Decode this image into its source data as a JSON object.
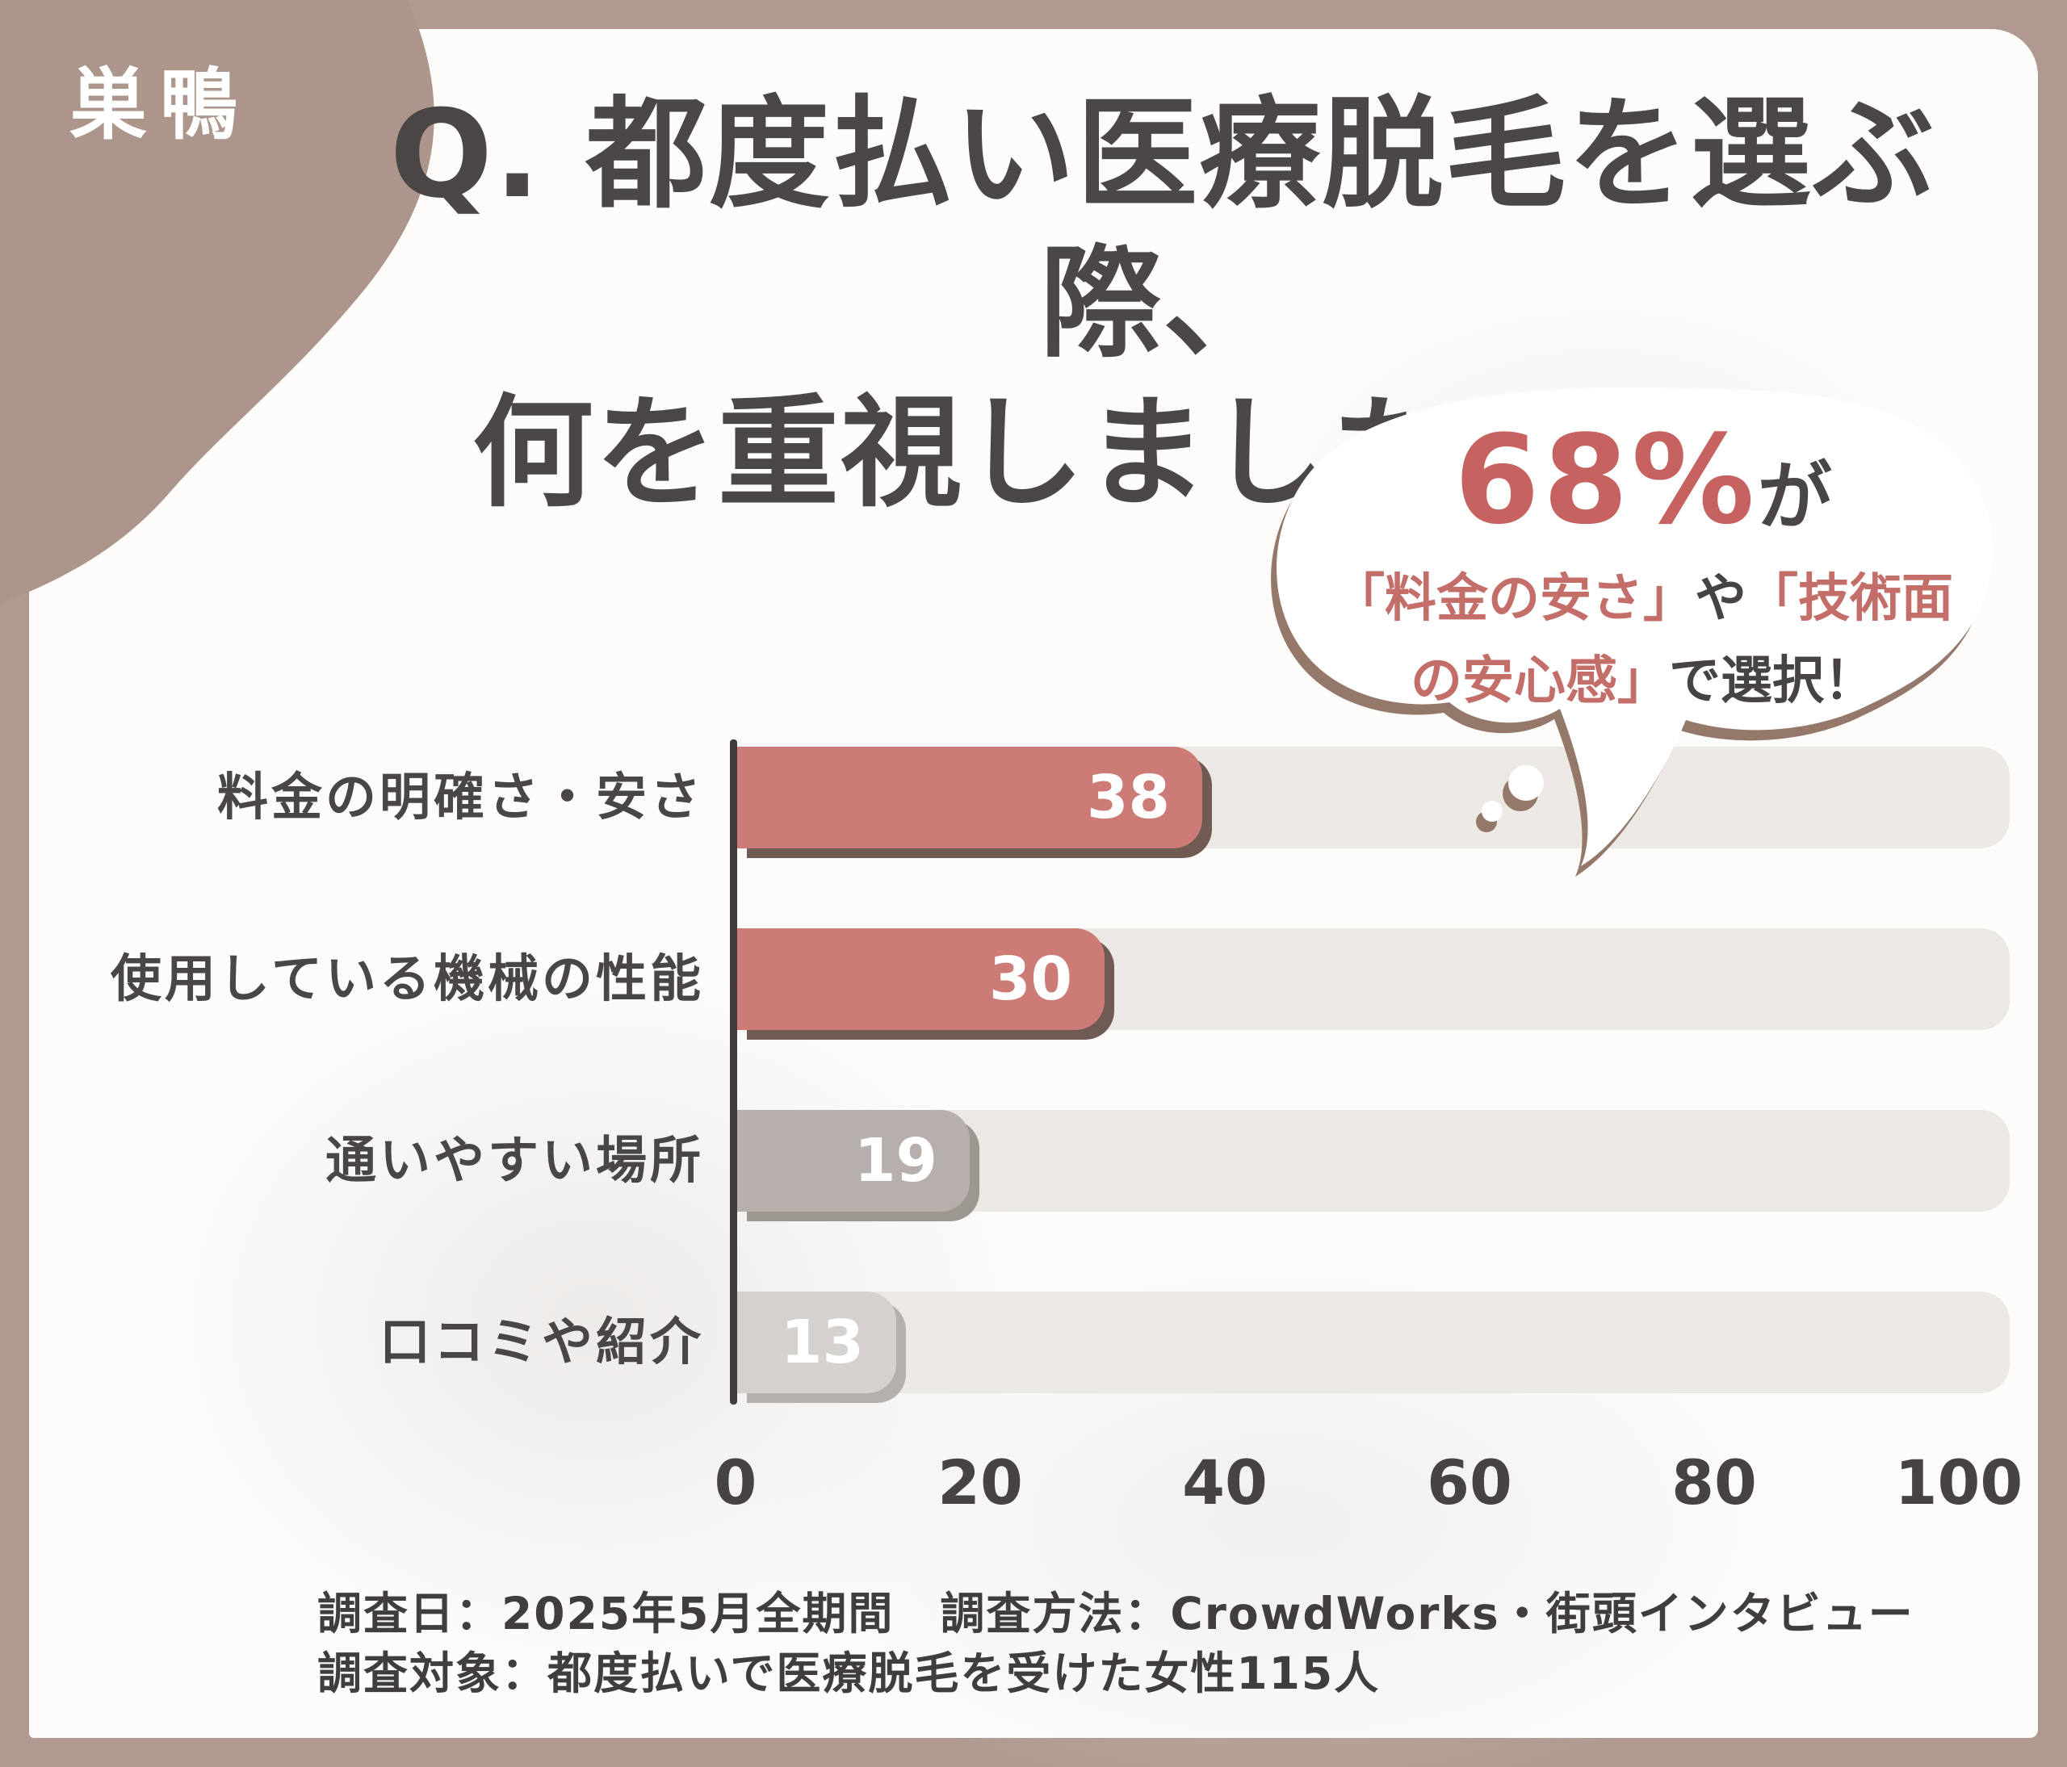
{
  "brand": {
    "logo": "巣鴨"
  },
  "title": {
    "line1": "Q. 都度払い医療脱毛を選ぶ際、",
    "line2": "何を重視しましたか？"
  },
  "callout": {
    "headline_value": "68%",
    "headline_suffix": "が",
    "line2_segments": [
      {
        "text": "「料金の安さ」",
        "tone": "red"
      },
      {
        "text": "や",
        "tone": "dark"
      },
      {
        "text": "「技術面",
        "tone": "red"
      }
    ],
    "line3_segments": [
      {
        "text": "の安心感」",
        "tone": "red"
      },
      {
        "text": "で選択！",
        "tone": "dark"
      }
    ]
  },
  "chart_data": {
    "type": "bar",
    "orientation": "horizontal",
    "title": "Q. 都度払い医療脱毛を選ぶ際、何を重視しましたか？",
    "categories": [
      "料金の明確さ・安さ",
      "使用している機械の性能",
      "通いやすい場所",
      "口コミや紹介"
    ],
    "values": [
      38,
      30,
      19,
      13
    ],
    "x_ticks": [
      0,
      20,
      40,
      60,
      80,
      100
    ],
    "xlim": [
      0,
      104
    ],
    "grid": false,
    "legend": false,
    "bar_colors": [
      "#cd7b77",
      "#cd7b77",
      "#b6afab",
      "#d5d1ce"
    ],
    "bar_shadow_colors": [
      "#6f5b53",
      "#6f5b53",
      "#9d9792",
      "#b5b0ab"
    ],
    "track_color": "#ece8e3",
    "axis_color": "#403c3b"
  },
  "footer": {
    "line1": "調査日：2025年5月全期間　調査方法：CrowdWorks・街頭インタビュー",
    "line2": "調査対象：都度払いで医療脱毛を受けた女性115人"
  },
  "colors": {
    "frame_brown": "#b09a8f",
    "blob_brown": "#ac968b",
    "content_bg": "#fdfcfb",
    "dark_text": "#4b4747",
    "accent_red": "#c6625f",
    "bubble_shadow": "#94796b",
    "white": "#ffffff"
  }
}
